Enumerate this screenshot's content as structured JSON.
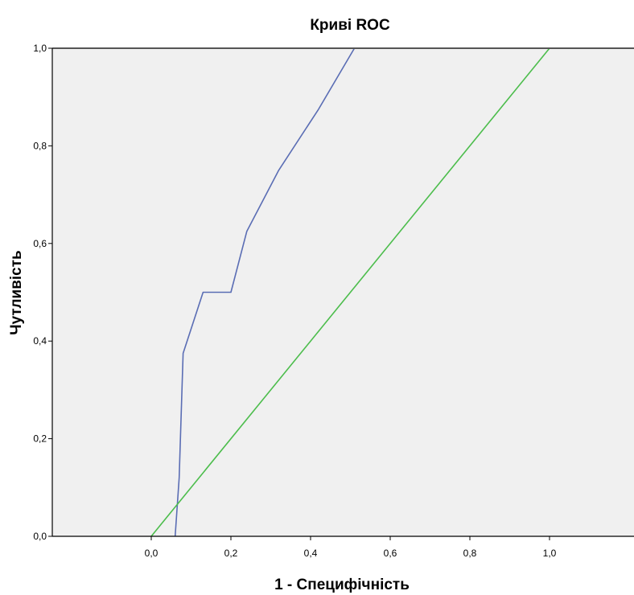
{
  "chart_data": {
    "type": "line",
    "title": "Криві ROC",
    "xlabel": "1 - Специфічність",
    "ylabel": "Чутливість",
    "xlim": [
      -0.25,
      1.2
    ],
    "ylim": [
      0,
      1
    ],
    "x_ticks": [
      "0,0",
      "0,2",
      "0,4",
      "0,6",
      "0,8",
      "1,0"
    ],
    "y_ticks": [
      "0,0",
      "0,2",
      "0,4",
      "0,6",
      "0,8",
      "1,0"
    ],
    "grid": false,
    "plot_background": "#f0f0f0",
    "series": [
      {
        "color": "#5a6db4",
        "x": [
          0.06,
          0.07,
          0.08,
          0.13,
          0.2,
          0.24,
          0.32,
          0.42,
          0.51,
          1.0
        ],
        "y": [
          0.0,
          0.12,
          0.375,
          0.5,
          0.5,
          0.625,
          0.75,
          0.875,
          1.0,
          1.0
        ]
      },
      {
        "color": "#4cbd4c",
        "x": [
          0.0,
          1.0
        ],
        "y": [
          0.0,
          1.0
        ]
      }
    ]
  }
}
